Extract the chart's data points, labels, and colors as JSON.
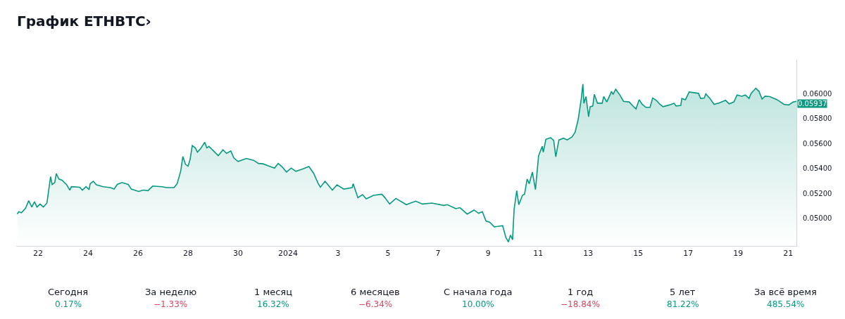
{
  "chart_data": [
    {
      "type": "area",
      "title": "График ETHBTC›",
      "color": "#089981",
      "x": [
        "2023-12-21T04:00",
        "2023-12-21T05:30",
        "2023-12-21T08:00",
        "2023-12-21T12:00",
        "2023-12-21T15:00",
        "2023-12-21T18:00",
        "2023-12-21T20:30",
        "2023-12-21T23:00",
        "2023-12-22T02:00",
        "2023-12-22T05:00",
        "2023-12-22T08:30",
        "2023-12-22T12:00",
        "2023-12-22T13:30",
        "2023-12-22T16:00",
        "2023-12-22T17:30",
        "2023-12-22T20:00",
        "2023-12-22T23:00",
        "2023-12-23T03:30",
        "2023-12-23T06:30",
        "2023-12-23T08:00",
        "2023-12-23T16:00",
        "2023-12-23T18:30",
        "2023-12-23T22:00",
        "2023-12-24T01:00",
        "2023-12-24T02:00",
        "2023-12-24T05:00",
        "2023-12-24T08:00",
        "2023-12-24T14:30",
        "2023-12-24T21:30",
        "2023-12-25T01:00",
        "2023-12-25T04:00",
        "2023-12-25T08:30",
        "2023-12-25T14:30",
        "2023-12-25T17:30",
        "2023-12-26T00:30",
        "2023-12-26T05:00",
        "2023-12-26T09:30",
        "2023-12-26T14:00",
        "2023-12-26T23:00",
        "2023-12-27T03:30",
        "2023-12-27T10:30",
        "2023-12-27T13:30",
        "2023-12-27T17:00",
        "2023-12-27T19:00",
        "2023-12-27T21:30",
        "2023-12-28T00:00",
        "2023-12-28T02:00",
        "2023-12-28T04:00",
        "2023-12-28T07:00",
        "2023-12-28T09:00",
        "2023-12-28T12:00",
        "2023-12-28T16:00",
        "2023-12-28T18:00",
        "2023-12-28T20:00",
        "2023-12-29T00:30",
        "2023-12-29T05:00",
        "2023-12-29T09:30",
        "2023-12-29T13:00",
        "2023-12-29T17:00",
        "2023-12-29T20:00",
        "2023-12-30T00:00",
        "2023-12-30T08:00",
        "2023-12-30T15:00",
        "2023-12-30T19:30",
        "2023-12-31T00:00",
        "2023-12-31T04:30",
        "2023-12-31T11:00",
        "2023-12-31T14:30",
        "2023-12-31T18:00",
        "2023-12-31T22:30",
        "2024-01-01T03:00",
        "2024-01-01T07:30",
        "2024-01-01T14:00",
        "2024-01-01T20:00",
        "2024-01-02T00:30",
        "2024-01-02T05:00",
        "2024-01-02T07:00",
        "2024-01-02T11:30",
        "2024-01-02T18:30",
        "2024-01-02T23:00",
        "2024-01-03T05:30",
        "2024-01-03T13:30",
        "2024-01-03T14:30",
        "2024-01-03T19:00",
        "2024-01-03T23:30",
        "2024-01-04T03:00",
        "2024-01-04T10:00",
        "2024-01-04T18:00",
        "2024-01-04T21:00",
        "2024-01-05T01:30",
        "2024-01-05T07:30",
        "2024-01-05T17:30",
        "2024-01-06T02:30",
        "2024-01-06T09:00",
        "2024-01-06T18:00",
        "2024-01-07T05:30",
        "2024-01-07T09:00",
        "2024-01-07T17:00",
        "2024-01-07T21:00",
        "2024-01-08T04:00",
        "2024-01-08T10:30",
        "2024-01-08T15:00",
        "2024-01-08T18:30",
        "2024-01-08T22:00",
        "2024-01-09T01:30",
        "2024-01-09T06:00",
        "2024-01-09T09:00",
        "2024-01-09T14:00",
        "2024-01-09T17:00",
        "2024-01-09T19:30",
        "2024-01-09T21:30",
        "2024-01-09T23:30",
        "2024-01-10T01:00",
        "2024-01-10T03:30",
        "2024-01-10T05:30",
        "2024-01-10T09:00",
        "2024-01-10T11:00",
        "2024-01-10T13:30",
        "2024-01-10T15:30",
        "2024-01-10T18:30",
        "2024-01-10T21:30",
        "2024-01-11T00:30",
        "2024-01-11T04:00",
        "2024-01-11T05:00",
        "2024-01-11T07:30",
        "2024-01-11T12:00",
        "2024-01-11T15:00",
        "2024-01-11T17:00",
        "2024-01-11T20:00",
        "2024-01-12T00:30",
        "2024-01-12T04:00",
        "2024-01-12T08:30",
        "2024-01-12T11:30",
        "2024-01-12T14:30",
        "2024-01-12T17:30",
        "2024-01-12T19:00",
        "2024-01-12T20:00",
        "2024-01-12T22:00",
        "2024-01-13T00:30",
        "2024-01-13T02:00",
        "2024-01-13T04:30",
        "2024-01-13T06:00",
        "2024-01-13T09:00",
        "2024-01-13T13:30",
        "2024-01-13T15:00",
        "2024-01-13T18:00",
        "2024-01-13T22:30",
        "2024-01-14T00:00",
        "2024-01-14T02:30",
        "2024-01-14T06:30",
        "2024-01-14T10:00",
        "2024-01-14T15:30",
        "2024-01-14T19:00",
        "2024-01-14T22:00",
        "2024-01-15T01:00",
        "2024-01-15T04:00",
        "2024-01-15T07:30",
        "2024-01-15T11:30",
        "2024-01-15T14:00",
        "2024-01-15T17:30",
        "2024-01-15T21:00",
        "2024-01-16T00:00",
        "2024-01-16T06:00",
        "2024-01-16T10:30",
        "2024-01-16T12:30",
        "2024-01-16T17:00",
        "2024-01-16T18:00",
        "2024-01-16T21:30",
        "2024-01-17T01:00",
        "2024-01-17T10:00",
        "2024-01-17T12:00",
        "2024-01-17T15:30",
        "2024-01-17T17:00",
        "2024-01-17T21:00",
        "2024-01-18T01:00",
        "2024-01-18T05:00",
        "2024-01-18T12:00",
        "2024-01-18T15:30",
        "2024-01-18T20:00",
        "2024-01-18T23:00",
        "2024-01-19T03:30",
        "2024-01-19T07:00",
        "2024-01-19T10:30",
        "2024-01-19T12:30",
        "2024-01-19T17:00",
        "2024-01-19T20:00",
        "2024-01-19T23:00",
        "2024-01-20T02:00",
        "2024-01-20T06:30",
        "2024-01-20T13:30",
        "2024-01-20T20:00",
        "2024-01-21T00:30",
        "2024-01-21T05:00",
        "2024-01-21T08:00"
      ],
      "values": [
        0.05035,
        0.05054,
        0.05045,
        0.05082,
        0.05142,
        0.05091,
        0.05134,
        0.05091,
        0.05115,
        0.05091,
        0.05123,
        0.05334,
        0.05272,
        0.05287,
        0.05359,
        0.05315,
        0.05306,
        0.05269,
        0.05226,
        0.05254,
        0.0525,
        0.05227,
        0.05254,
        0.05231,
        0.05278,
        0.05297,
        0.05269,
        0.05254,
        0.05247,
        0.05235,
        0.05272,
        0.05287,
        0.05272,
        0.05235,
        0.05216,
        0.05227,
        0.05222,
        0.05259,
        0.05254,
        0.05247,
        0.05247,
        0.05278,
        0.05381,
        0.05496,
        0.05433,
        0.05418,
        0.05474,
        0.05583,
        0.05564,
        0.0553,
        0.05558,
        0.05609,
        0.05564,
        0.05577,
        0.0554,
        0.05502,
        0.05549,
        0.05521,
        0.0554,
        0.05484,
        0.05456,
        0.0548,
        0.05465,
        0.0544,
        0.05437,
        0.05422,
        0.05403,
        0.0544,
        0.05415,
        0.05371,
        0.05403,
        0.05377,
        0.05396,
        0.05415,
        0.05362,
        0.05278,
        0.0525,
        0.05297,
        0.05227,
        0.05269,
        0.05235,
        0.05247,
        0.05278,
        0.05166,
        0.0519,
        0.05157,
        0.05185,
        0.05194,
        0.05166,
        0.05115,
        0.0516,
        0.0511,
        0.05138,
        0.05115,
        0.05123,
        0.05104,
        0.0511,
        0.05078,
        0.05086,
        0.05035,
        0.05067,
        0.05041,
        0.05054,
        0.04979,
        0.0497,
        0.04933,
        0.04936,
        0.04942,
        0.04849,
        0.04811,
        0.04867,
        0.0483,
        0.05073,
        0.05222,
        0.0511,
        0.05185,
        0.05194,
        0.05315,
        0.05278,
        0.05371,
        0.05231,
        0.05502,
        0.05577,
        0.0553,
        0.05633,
        0.05646,
        0.05624,
        0.05493,
        0.05628,
        0.05642,
        0.05628,
        0.05652,
        0.05689,
        0.05792,
        0.0596,
        0.06076,
        0.05922,
        0.05975,
        0.05814,
        0.05894,
        0.059,
        0.05993,
        0.05922,
        0.05922,
        0.05975,
        0.05932,
        0.06016,
        0.05993,
        0.06034,
        0.05988,
        0.05937,
        0.05932,
        0.059,
        0.05876,
        0.0595,
        0.05913,
        0.05889,
        0.05889,
        0.05964,
        0.05945,
        0.05913,
        0.05894,
        0.05908,
        0.05922,
        0.059,
        0.05904,
        0.0596,
        0.0595,
        0.06012,
        0.06001,
        0.0596,
        0.05964,
        0.05997,
        0.0596,
        0.05913,
        0.05922,
        0.05945,
        0.05917,
        0.05932,
        0.05988,
        0.05978,
        0.05988,
        0.0596,
        0.06001,
        0.06042,
        0.06018,
        0.05956,
        0.05978,
        0.05975,
        0.0595,
        0.05913,
        0.05908,
        0.05932,
        0.05937
      ],
      "xlim": [
        "2023-12-21T03:00",
        "2024-01-21T08:00"
      ],
      "xticks": [
        {
          "value": "2023-12-22",
          "label": "22"
        },
        {
          "value": "2023-12-24",
          "label": "24"
        },
        {
          "value": "2023-12-26",
          "label": "26"
        },
        {
          "value": "2023-12-28",
          "label": "28"
        },
        {
          "value": "2023-12-30",
          "label": "30"
        },
        {
          "value": "2024-01-01",
          "label": "2024"
        },
        {
          "value": "2024-01-03",
          "label": "3"
        },
        {
          "value": "2024-01-05",
          "label": "5"
        },
        {
          "value": "2024-01-07",
          "label": "7"
        },
        {
          "value": "2024-01-09",
          "label": "9"
        },
        {
          "value": "2024-01-11",
          "label": "11"
        },
        {
          "value": "2024-01-13",
          "label": "13"
        },
        {
          "value": "2024-01-15",
          "label": "15"
        },
        {
          "value": "2024-01-17",
          "label": "17"
        },
        {
          "value": "2024-01-19",
          "label": "19"
        },
        {
          "value": "2024-01-21",
          "label": "21"
        }
      ],
      "ylim": [
        0.0478,
        0.0627
      ],
      "yticks": [
        {
          "value": 0.05,
          "label": "0.05000"
        },
        {
          "value": 0.052,
          "label": "0.05200"
        },
        {
          "value": 0.054,
          "label": "0.05400"
        },
        {
          "value": 0.056,
          "label": "0.05600"
        },
        {
          "value": 0.058,
          "label": "0.05800"
        },
        {
          "value": 0.06,
          "label": "0.06000"
        }
      ],
      "annotations": [
        {
          "text": "0.05937",
          "x": "2024-01-21T08:00",
          "y": 0.05937
        }
      ]
    },
    {
      "type": "other",
      "categories": [
        "Сегодня",
        "За неделю",
        "1 месяц",
        "6 месяцев",
        "С начала года",
        "1 год",
        "5 лет",
        "За всё время"
      ],
      "value_labels": [
        "0.17%",
        "−1.33%",
        "16.32%",
        "−6.34%",
        "10.00%",
        "−18.84%",
        "81.22%",
        "485.54%"
      ],
      "colors": [
        "#089981",
        "#d9455f",
        "#089981",
        "#d9455f",
        "#089981",
        "#d9455f",
        "#089981",
        "#089981"
      ]
    }
  ]
}
